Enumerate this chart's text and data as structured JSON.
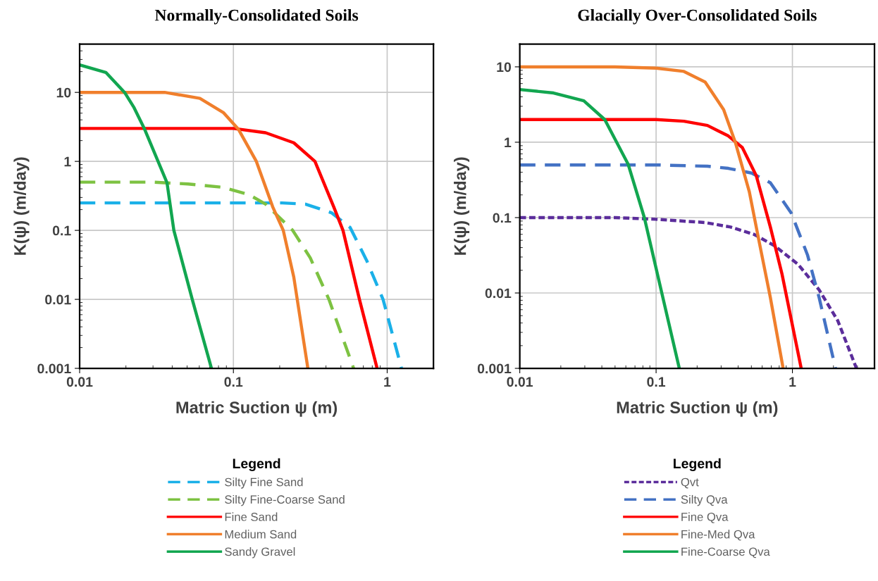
{
  "chart_data": [
    {
      "type": "line",
      "title": "Normally-Consolidated Soils",
      "xlabel": "Matric Suction ψ (m)",
      "ylabel": "K(ψ) (m/day)",
      "log": "xy",
      "grid": true,
      "legend": "bottom",
      "legend_title": "Legend",
      "marker": "none",
      "xlim": [
        0.01,
        2
      ],
      "ylim": [
        0.001,
        50
      ],
      "xticks": [
        0.01,
        0.1,
        1
      ],
      "yticks": [
        0.001,
        0.01,
        0.1,
        1,
        10
      ],
      "series": [
        {
          "name": "Silty Fine Sand",
          "color": "#1ab0e8",
          "line_style": "dashed",
          "x": [
            0.01,
            0.05,
            0.1,
            0.207,
            0.294,
            0.434,
            0.574,
            0.734,
            0.94,
            1.24
          ],
          "values": [
            0.25,
            0.25,
            0.25,
            0.25,
            0.24,
            0.18,
            0.11,
            0.037,
            0.01,
            0.001
          ]
        },
        {
          "name": "Silty Fine-Coarse Sand",
          "color": "#7dc242",
          "line_style": "dashed",
          "x": [
            0.01,
            0.03,
            0.0507,
            0.086,
            0.126,
            0.162,
            0.243,
            0.316,
            0.418,
            0.605
          ],
          "values": [
            0.5,
            0.5,
            0.47,
            0.42,
            0.33,
            0.24,
            0.1,
            0.04,
            0.01,
            0.001
          ]
        },
        {
          "name": "Fine Sand",
          "color": "#ff0000",
          "line_style": "solid",
          "x": [
            0.01,
            0.05,
            0.1,
            0.162,
            0.247,
            0.339,
            0.449,
            0.516,
            0.66,
            0.86
          ],
          "values": [
            3,
            3,
            3,
            2.6,
            1.86,
            1,
            0.22,
            0.1,
            0.01,
            0.001
          ]
        },
        {
          "name": "Medium Sand",
          "color": "#f07f2c",
          "line_style": "solid",
          "x": [
            0.01,
            0.0357,
            0.0605,
            0.086,
            0.108,
            0.141,
            0.18,
            0.211,
            0.247,
            0.305
          ],
          "values": [
            10,
            10,
            8.2,
            5.1,
            2.9,
            1,
            0.22,
            0.1,
            0.021,
            0.001
          ]
        },
        {
          "name": "Sandy Gravel",
          "color": "#12a650",
          "line_style": "solid",
          "x": [
            0.01,
            0.0148,
            0.0196,
            0.0226,
            0.0265,
            0.037,
            0.041,
            0.054,
            0.072
          ],
          "values": [
            25,
            19.5,
            10,
            6,
            2.9,
            0.49,
            0.1,
            0.01,
            0.001
          ]
        }
      ]
    },
    {
      "type": "line",
      "title": "Glacially Over-Consolidated Soils",
      "xlabel": "Matric Suction ψ (m)",
      "ylabel": "K(ψ) (m/day)",
      "log": "xy",
      "grid": true,
      "legend": "bottom",
      "legend_title": "Legend",
      "marker": "none",
      "xlim": [
        0.01,
        4
      ],
      "ylim": [
        0.001,
        20
      ],
      "xticks": [
        0.01,
        0.1,
        1
      ],
      "yticks": [
        0.001,
        0.01,
        0.1,
        1,
        10
      ],
      "series": [
        {
          "name": "Qvt",
          "color": "#5b2d9b",
          "line_style": "dotted",
          "x": [
            0.01,
            0.05,
            0.1,
            0.229,
            0.352,
            0.522,
            0.745,
            1.1,
            1.57,
            2.15,
            2.95
          ],
          "values": [
            0.1,
            0.1,
            0.095,
            0.086,
            0.075,
            0.06,
            0.042,
            0.024,
            0.011,
            0.0043,
            0.001
          ]
        },
        {
          "name": "Silty Qva",
          "color": "#4472c4",
          "line_style": "dashed",
          "x": [
            0.01,
            0.1,
            0.238,
            0.339,
            0.502,
            0.689,
            0.98,
            1.29,
            1.57,
            2.07
          ],
          "values": [
            0.5,
            0.5,
            0.48,
            0.45,
            0.39,
            0.29,
            0.115,
            0.032,
            0.0087,
            0.001
          ]
        },
        {
          "name": "Fine Qva",
          "color": "#ff0000",
          "line_style": "solid",
          "x": [
            0.01,
            0.1,
            0.16,
            0.238,
            0.339,
            0.429,
            0.543,
            0.689,
            0.838,
            1.16
          ],
          "values": [
            2,
            2,
            1.9,
            1.67,
            1.21,
            0.85,
            0.36,
            0.075,
            0.018,
            0.001
          ]
        },
        {
          "name": "Fine-Med Qva",
          "color": "#f07f2c",
          "line_style": "solid",
          "x": [
            0.01,
            0.05,
            0.1,
            0.16,
            0.229,
            0.313,
            0.381,
            0.483,
            0.565,
            0.689,
            0.855
          ],
          "values": [
            10,
            10,
            9.6,
            8.7,
            6.3,
            2.7,
            1,
            0.22,
            0.052,
            0.0087,
            0.001
          ]
        },
        {
          "name": "Fine-Coarse Qva",
          "color": "#12a650",
          "line_style": "solid",
          "x": [
            0.01,
            0.0177,
            0.0295,
            0.042,
            0.0624,
            0.082,
            0.108,
            0.148
          ],
          "values": [
            5,
            4.5,
            3.55,
            2,
            0.51,
            0.1,
            0.0116,
            0.001
          ]
        }
      ]
    }
  ]
}
